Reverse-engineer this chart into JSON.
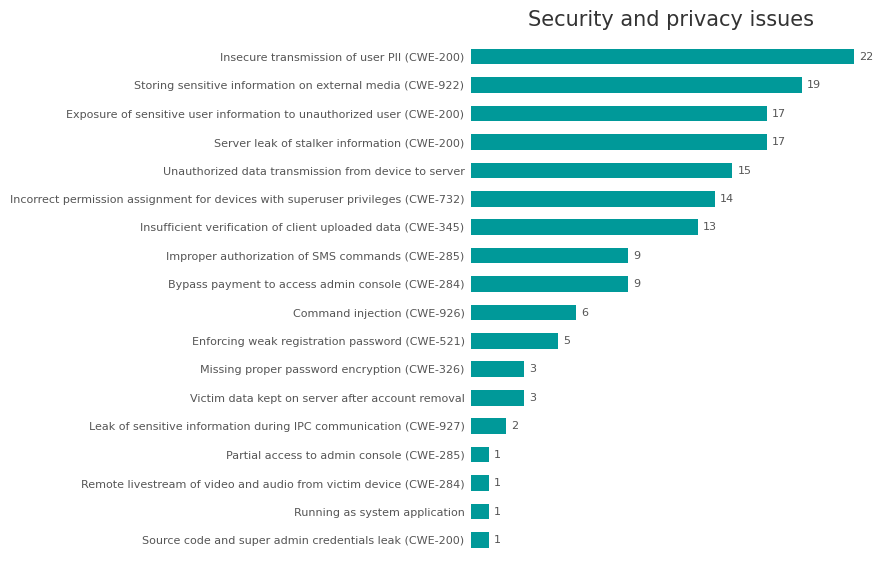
{
  "title": "Security and privacy issues",
  "categories": [
    "Source code and super admin credentials leak (CWE-200)",
    "Running as system application",
    "Remote livestream of video and audio from victim device (CWE-284)",
    "Partial access to admin console (CWE-285)",
    "Leak of sensitive information during IPC communication (CWE-927)",
    "Victim data kept on server after account removal",
    "Missing proper password encryption (CWE-326)",
    "Enforcing weak registration password (CWE-521)",
    "Command injection (CWE-926)",
    "Bypass payment to access admin console (CWE-284)",
    "Improper authorization of SMS commands (CWE-285)",
    "Insufficient verification of client uploaded data (CWE-345)",
    "Incorrect permission assignment for devices with superuser privileges (CWE-732)",
    "Unauthorized data transmission from device to server",
    "Server leak of stalker information (CWE-200)",
    "Exposure of sensitive user information to unauthorized user (CWE-200)",
    "Storing sensitive information on external media (CWE-922)",
    "Insecure transmission of user PII (CWE-200)"
  ],
  "values": [
    1,
    1,
    1,
    1,
    2,
    3,
    3,
    5,
    6,
    9,
    9,
    13,
    14,
    15,
    17,
    17,
    19,
    22
  ],
  "bar_color": "#009999",
  "background_color": "#ffffff",
  "plot_area_color": "#ffffff",
  "grid_color": "#dddddd",
  "title_fontsize": 15,
  "label_fontsize": 8,
  "value_fontsize": 8,
  "title_color": "#333333",
  "label_color": "#555555",
  "value_color": "#555555",
  "xlim": [
    0,
    23
  ],
  "bar_height": 0.55
}
